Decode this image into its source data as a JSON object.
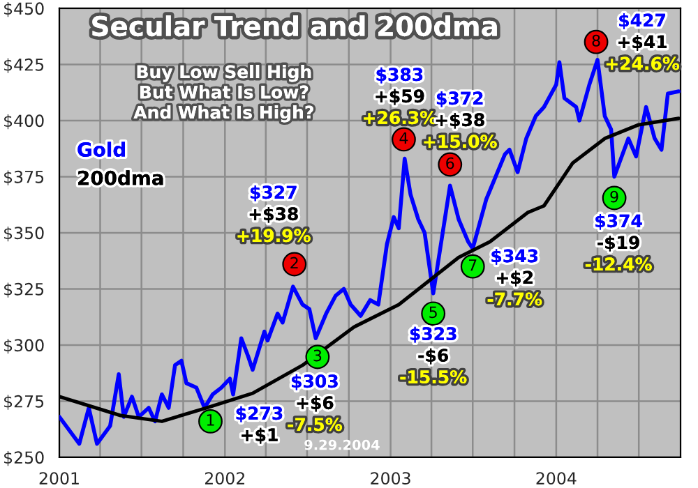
{
  "chart_data": {
    "type": "line",
    "title": "Secular Trend and 200dma",
    "x": [
      "2001-01-01",
      "2001-02-14",
      "2001-03-07",
      "2001-03-25",
      "2001-04-23",
      "2001-05-12",
      "2001-05-23",
      "2001-06-10",
      "2001-06-25",
      "2001-07-17",
      "2001-07-31",
      "2001-08-15",
      "2001-08-30",
      "2001-09-13",
      "2001-09-27",
      "2001-10-08",
      "2001-10-30",
      "2001-11-17",
      "2001-12-05",
      "2001-12-24",
      "2002-01-12",
      "2002-01-19",
      "2002-02-06",
      "2002-02-21",
      "2002-03-03",
      "2002-03-29",
      "2002-04-05",
      "2002-04-27",
      "2002-05-08",
      "2002-05-31",
      "2002-06-21",
      "2002-07-06",
      "2002-07-20",
      "2002-08-12",
      "2002-09-02",
      "2002-09-20",
      "2002-10-05",
      "2002-10-27",
      "2002-11-17",
      "2002-12-05",
      "2002-12-24",
      "2003-01-08",
      "2003-01-19",
      "2003-02-01",
      "2003-02-14",
      "2003-03-03",
      "2003-03-17",
      "2003-04-05",
      "2003-05-12",
      "2003-05-31",
      "2003-06-21",
      "2003-07-01",
      "2003-07-31",
      "2003-09-10",
      "2003-09-20",
      "2003-10-08",
      "2003-10-27",
      "2003-11-17",
      "2003-12-05",
      "2004-01-01",
      "2004-01-08",
      "2004-01-19",
      "2004-02-14",
      "2004-02-21",
      "2004-03-14",
      "2004-04-01",
      "2004-04-17",
      "2004-05-01",
      "2004-05-08",
      "2004-06-08",
      "2004-06-25",
      "2004-07-17",
      "2004-08-05",
      "2004-08-20",
      "2004-09-03",
      "2004-09-27"
    ],
    "series": [
      {
        "name": "Gold",
        "color": "#0000ff",
        "values": [
          268,
          256,
          272,
          256,
          264,
          287,
          268,
          277,
          268,
          272,
          266,
          278,
          272,
          291,
          293,
          283,
          281,
          272,
          278,
          281,
          285,
          278,
          303,
          295,
          289,
          306,
          302,
          314,
          310,
          326,
          318,
          316,
          303,
          314,
          322,
          325,
          318,
          313,
          320,
          318,
          345,
          357,
          352,
          383,
          367,
          356,
          350,
          323,
          371,
          356,
          346,
          343,
          365,
          385,
          387,
          377,
          392,
          402,
          406,
          416,
          426,
          410,
          406,
          400,
          416,
          427,
          402,
          396,
          375,
          392,
          384,
          406,
          392,
          387,
          412,
          413
        ]
      },
      {
        "name": "200dma",
        "color": "#000000",
        "x": [
          "2001-01-01",
          "2001-05-16",
          "2001-08-15",
          "2001-11-21",
          "2002-03-03",
          "2002-06-21",
          "2002-10-12",
          "2003-01-19",
          "2003-05-31",
          "2003-08-08",
          "2003-10-30",
          "2003-12-05",
          "2004-02-06",
          "2004-04-17",
          "2004-06-29",
          "2004-09-27"
        ],
        "values": [
          277,
          268.6,
          266,
          272,
          278.5,
          291,
          308,
          318,
          339,
          346,
          359,
          362,
          381,
          392,
          398,
          401
        ]
      }
    ],
    "xlim": [
      "2001-01-01",
      "2004-10-01"
    ],
    "xticks": [
      {
        "value": "2001-01-01",
        "label": "2001"
      },
      {
        "value": "2001-04-01",
        "label": null
      },
      {
        "value": "2001-07-01",
        "label": null
      },
      {
        "value": "2001-10-01",
        "label": null
      },
      {
        "value": "2002-01-01",
        "label": "2002"
      },
      {
        "value": "2002-04-01",
        "label": null
      },
      {
        "value": "2002-07-01",
        "label": null
      },
      {
        "value": "2002-10-01",
        "label": null
      },
      {
        "value": "2003-01-01",
        "label": "2003"
      },
      {
        "value": "2003-04-01",
        "label": null
      },
      {
        "value": "2003-07-01",
        "label": null
      },
      {
        "value": "2003-10-01",
        "label": null
      },
      {
        "value": "2004-01-01",
        "label": "2004"
      },
      {
        "value": "2004-04-01",
        "label": null
      },
      {
        "value": "2004-07-01",
        "label": null
      }
    ],
    "ylim": [
      250,
      450
    ],
    "yticks": [
      {
        "value": 250,
        "label": "$250"
      },
      {
        "value": 275,
        "label": "$275"
      },
      {
        "value": 300,
        "label": "$300"
      },
      {
        "value": 325,
        "label": "$325"
      },
      {
        "value": 350,
        "label": "$350"
      },
      {
        "value": 375,
        "label": "$375"
      },
      {
        "value": 400,
        "label": "$400"
      },
      {
        "value": 425,
        "label": "$425"
      },
      {
        "value": 450,
        "label": "$450"
      }
    ],
    "grid": true,
    "legend": "left",
    "marker": "none",
    "line_style": "solid",
    "annotations": [
      {
        "text": "1",
        "x": "2001-11-30",
        "y": 266
      },
      {
        "text": "2",
        "x": "2002-06-03",
        "y": 336
      },
      {
        "text": "3",
        "x": "2002-07-24",
        "y": 294.7
      },
      {
        "text": "4",
        "x": "2003-01-30",
        "y": 391.6
      },
      {
        "text": "5",
        "x": "2003-04-05",
        "y": 314
      },
      {
        "text": "6",
        "x": "2003-05-12",
        "y": 380.4
      },
      {
        "text": "7",
        "x": "2003-07-01",
        "y": 335
      },
      {
        "text": "8",
        "x": "2004-03-29",
        "y": 435
      },
      {
        "text": "9",
        "x": "2004-05-08",
        "y": 365.5
      },
      "$273\n+$1",
      "$327\n+$38\n+19.9%",
      "$303\n+$6\n-7.5%",
      "$383\n+$59\n+26.3%",
      "$323\n-$6\n-15.5%",
      "$372\n+$38\n+15.0%",
      "$343\n+$2\n-7.7%",
      "$427\n+$41\n+24.6%",
      "$374\n-$19\n-12.4%",
      "Buy Low Sell High\nBut What Is Low?\nAnd What Is High?",
      "9.29.2004"
    ]
  }
}
